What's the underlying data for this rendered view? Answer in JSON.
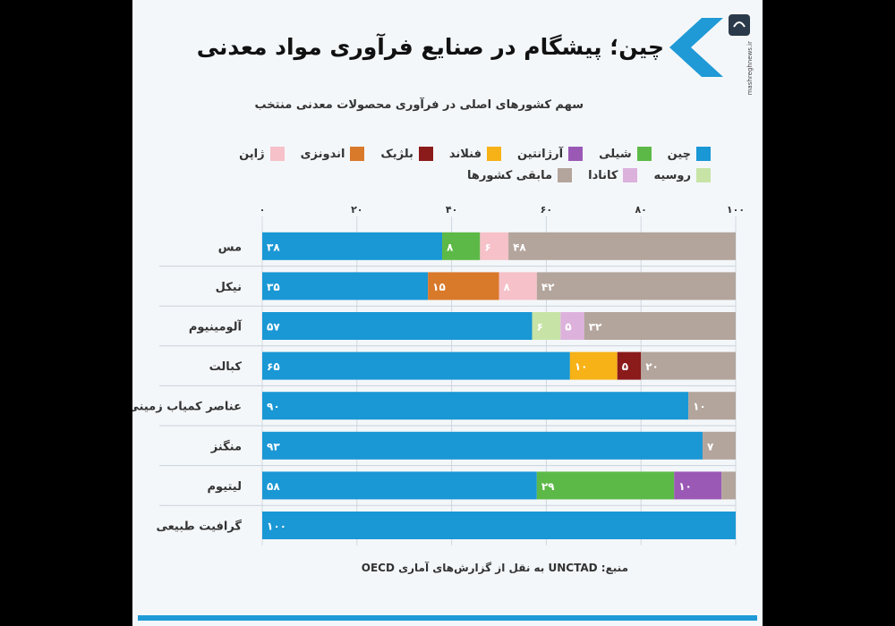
{
  "header": {
    "title": "چین؛ پیشگام در صنایع فرآوری مواد معدنی",
    "subtitle": "سهم کشورهای اصلی در فرآوری محصولات معدنی منتخب",
    "watermark": "mashreghnews.ir"
  },
  "footer": {
    "source": "منبع: UNCTAD به نقل از گزارش‌های آماری OECD"
  },
  "colors": {
    "accent": "#1f9ad6",
    "background": "#f4f7fa",
    "gridline": "#cfd8df"
  },
  "chart_data": {
    "type": "bar",
    "orientation": "horizontal",
    "stacked": true,
    "xlim": [
      0,
      100
    ],
    "x_ticks": [
      "۰",
      "۲۰",
      "۴۰",
      "۶۰",
      "۸۰",
      "۱۰۰"
    ],
    "categories": [
      "مس",
      "نیکل",
      "آلومینیوم",
      "کبالت",
      "عناصر کمیاب زمینی",
      "منگنز",
      "لیتیوم",
      "گرافیت طبیعی"
    ],
    "series": [
      {
        "name": "چین",
        "color": "#1a97d5",
        "values": [
          38,
          35,
          57,
          65,
          90,
          93,
          58,
          100
        ],
        "labels": [
          "۳۸",
          "۳۵",
          "۵۷",
          "۶۵",
          "۹۰",
          "۹۳",
          "۵۸",
          "۱۰۰"
        ]
      },
      {
        "name": "شیلی",
        "color": "#5db947",
        "values": [
          8,
          0,
          0,
          0,
          0,
          0,
          29,
          0
        ],
        "labels": [
          "۸",
          "",
          "",
          "",
          "",
          "",
          "۲۹",
          ""
        ]
      },
      {
        "name": "آرژانتین",
        "color": "#9b59b6",
        "values": [
          0,
          0,
          0,
          0,
          0,
          0,
          10,
          0
        ],
        "labels": [
          "",
          "",
          "",
          "",
          "",
          "",
          "۱۰",
          ""
        ]
      },
      {
        "name": "فنلاند",
        "color": "#f7b217",
        "values": [
          0,
          0,
          0,
          10,
          0,
          0,
          0,
          0
        ],
        "labels": [
          "",
          "",
          "",
          "۱۰",
          "",
          "",
          "",
          ""
        ]
      },
      {
        "name": "بلژیک",
        "color": "#8b1a1a",
        "values": [
          0,
          0,
          0,
          5,
          0,
          0,
          0,
          0
        ],
        "labels": [
          "",
          "",
          "",
          "۵",
          "",
          "",
          "",
          ""
        ]
      },
      {
        "name": "اندونزی",
        "color": "#d9792a",
        "values": [
          0,
          15,
          0,
          0,
          0,
          0,
          0,
          0
        ],
        "labels": [
          "",
          "۱۵",
          "",
          "",
          "",
          "",
          "",
          ""
        ]
      },
      {
        "name": "ژاپن",
        "color": "#f6c1c9",
        "values": [
          6,
          8,
          0,
          0,
          0,
          0,
          0,
          0
        ],
        "labels": [
          "۶",
          "۸",
          "",
          "",
          "",
          "",
          "",
          ""
        ]
      },
      {
        "name": "روسیه",
        "color": "#c7e4a6",
        "values": [
          0,
          0,
          6,
          0,
          0,
          0,
          0,
          0
        ],
        "labels": [
          "",
          "",
          "۶",
          "",
          "",
          "",
          "",
          ""
        ]
      },
      {
        "name": "کانادا",
        "color": "#dcb2dc",
        "values": [
          0,
          0,
          5,
          0,
          0,
          0,
          0,
          0
        ],
        "labels": [
          "",
          "",
          "۵",
          "",
          "",
          "",
          "",
          ""
        ]
      },
      {
        "name": "مابقی کشورها",
        "color": "#b3a59c",
        "values": [
          48,
          42,
          32,
          20,
          10,
          7,
          3,
          0
        ],
        "labels": [
          "۴۸",
          "۴۲",
          "۳۲",
          "۲۰",
          "۱۰",
          "۷",
          "",
          ""
        ]
      }
    ]
  }
}
